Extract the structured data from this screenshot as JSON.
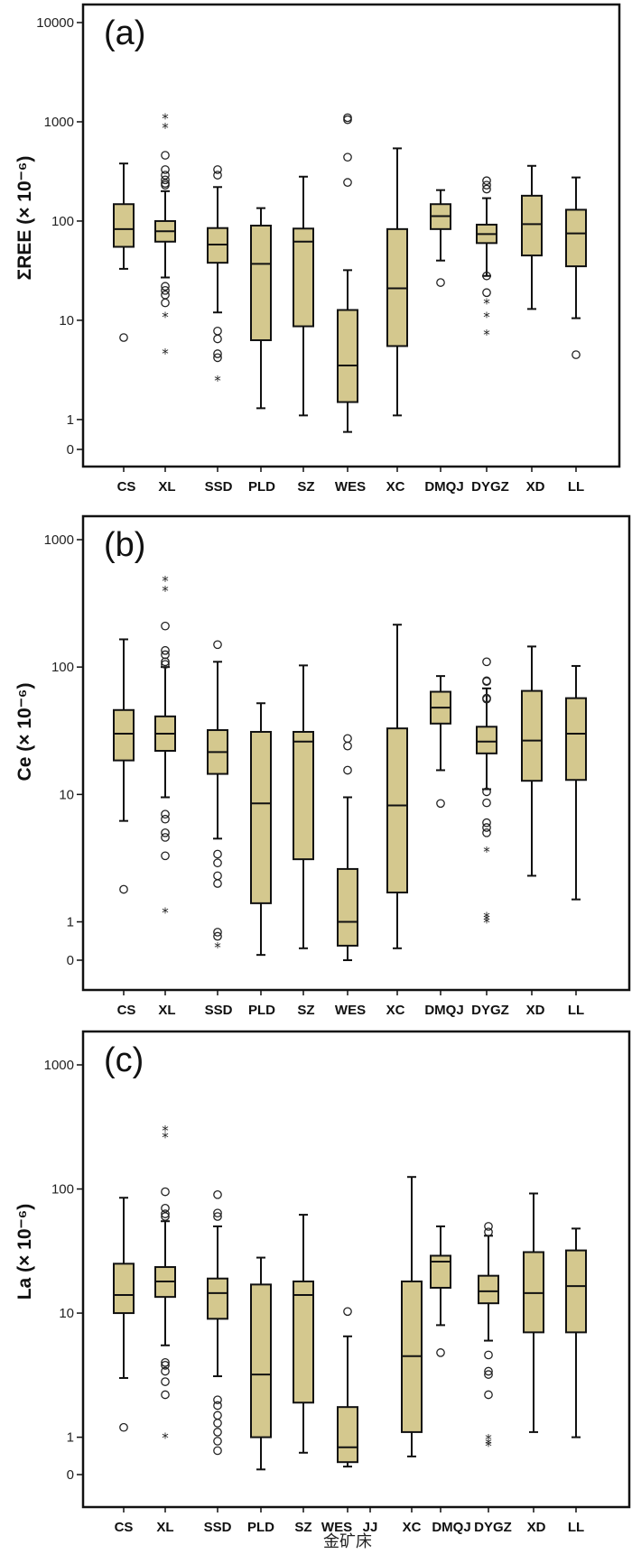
{
  "chart_data": [
    {
      "type": "boxplot",
      "panel_label": "(a)",
      "ylabel": "ΣREE (× 10⁻⁶)",
      "yscale": "log",
      "ylim": [
        0.5,
        10000
      ],
      "yticks": [
        {
          "value": 0.5,
          "label": "0"
        },
        {
          "value": 1,
          "label": "1"
        },
        {
          "value": 10,
          "label": "10"
        },
        {
          "value": 100,
          "label": "100"
        },
        {
          "value": 1000,
          "label": "1000"
        },
        {
          "value": 10000,
          "label": "10000"
        }
      ],
      "categories": [
        "CS",
        "XL",
        "SSD",
        "PLD",
        "SZ",
        "WES",
        "XC",
        "DMQJ",
        "DYGZ",
        "XD",
        "LL"
      ],
      "boxes": [
        {
          "min": 33,
          "q1": 55,
          "median": 83,
          "q3": 148,
          "max": 380,
          "outliers": [
            6.7
          ],
          "extremes": []
        },
        {
          "min": 27,
          "q1": 62,
          "median": 79,
          "q3": 100,
          "max": 200,
          "outliers": [
            460,
            330,
            290,
            260,
            240,
            230,
            22,
            20,
            18,
            15
          ],
          "extremes": [
            1100,
            880,
            11,
            4.7
          ]
        },
        {
          "min": 12,
          "q1": 38,
          "median": 58,
          "q3": 85,
          "max": 220,
          "outliers": [
            330,
            290,
            7.8,
            6.5,
            4.6,
            4.2
          ],
          "extremes": [
            2.5
          ]
        },
        {
          "min": 1.3,
          "q1": 6.3,
          "median": 37,
          "q3": 90,
          "max": 135,
          "outliers": [],
          "extremes": []
        },
        {
          "min": 1.1,
          "q1": 8.7,
          "median": 62,
          "q3": 84,
          "max": 280,
          "outliers": [],
          "extremes": []
        },
        {
          "min": 0.75,
          "q1": 1.5,
          "median": 3.5,
          "q3": 12.7,
          "max": 32,
          "outliers": [
            1100,
            1050,
            440,
            245
          ],
          "extremes": []
        },
        {
          "min": 1.1,
          "q1": 5.5,
          "median": 21,
          "q3": 83,
          "max": 540,
          "outliers": [],
          "extremes": []
        },
        {
          "min": 40,
          "q1": 83,
          "median": 112,
          "q3": 148,
          "max": 205,
          "outliers": [
            24
          ],
          "extremes": []
        },
        {
          "min": 28,
          "q1": 60,
          "median": 74,
          "q3": 92,
          "max": 170,
          "outliers": [
            255,
            230,
            210,
            28,
            19
          ],
          "extremes": [
            15,
            11,
            7.3
          ]
        },
        {
          "min": 13,
          "q1": 45,
          "median": 93,
          "q3": 180,
          "max": 360,
          "outliers": [],
          "extremes": []
        },
        {
          "min": 10.5,
          "q1": 35,
          "median": 75,
          "q3": 130,
          "max": 275,
          "outliers": [
            4.5
          ],
          "extremes": []
        }
      ]
    },
    {
      "type": "boxplot",
      "panel_label": "(b)",
      "ylabel": "Ce (× 10⁻⁶)",
      "yscale": "log",
      "ylim": [
        0.5,
        1000
      ],
      "yticks": [
        {
          "value": 0.5,
          "label": "0"
        },
        {
          "value": 1,
          "label": "1"
        },
        {
          "value": 10,
          "label": "10"
        },
        {
          "value": 100,
          "label": "100"
        },
        {
          "value": 1000,
          "label": "1000"
        }
      ],
      "categories": [
        "CS",
        "XL",
        "SSD",
        "PLD",
        "SZ",
        "WES",
        "XC",
        "DMQJ",
        "DYGZ",
        "XD",
        "LL"
      ],
      "boxes": [
        {
          "min": 6.2,
          "q1": 18.5,
          "median": 30,
          "q3": 46,
          "max": 165,
          "outliers": [
            1.8
          ],
          "extremes": []
        },
        {
          "min": 9.5,
          "q1": 22,
          "median": 30,
          "q3": 41,
          "max": 100,
          "outliers": [
            210,
            135,
            125,
            110,
            105,
            7,
            6.4,
            5,
            4.6,
            3.3
          ],
          "extremes": [
            480,
            400,
            1.2
          ]
        },
        {
          "min": 4.5,
          "q1": 14.5,
          "median": 21.5,
          "q3": 32,
          "max": 110,
          "outliers": [
            150,
            3.4,
            2.9,
            2.3,
            2,
            0.83,
            0.77
          ],
          "extremes": [
            0.64
          ]
        },
        {
          "min": 0.55,
          "q1": 1.4,
          "median": 8.5,
          "q3": 31,
          "max": 52,
          "outliers": [],
          "extremes": []
        },
        {
          "min": 0.62,
          "q1": 3.1,
          "median": 26,
          "q3": 31,
          "max": 103,
          "outliers": [],
          "extremes": []
        },
        {
          "min": 0.5,
          "q1": 0.65,
          "median": 1,
          "q3": 2.6,
          "max": 9.5,
          "outliers": [
            27.5,
            24,
            15.5
          ],
          "extremes": []
        },
        {
          "min": 0.62,
          "q1": 1.7,
          "median": 8.2,
          "q3": 33,
          "max": 215,
          "outliers": [],
          "extremes": []
        },
        {
          "min": 15.5,
          "q1": 36,
          "median": 48,
          "q3": 64,
          "max": 85,
          "outliers": [
            8.5
          ],
          "extremes": []
        },
        {
          "min": 11,
          "q1": 21,
          "median": 26,
          "q3": 34,
          "max": 68,
          "outliers": [
            110,
            78,
            77,
            57,
            56,
            10.5,
            8.6,
            6,
            5.5,
            5
          ],
          "extremes": [
            3.6,
            1.1,
            1.05,
            1
          ]
        },
        {
          "min": 2.3,
          "q1": 12.8,
          "median": 26.5,
          "q3": 65,
          "max": 145,
          "outliers": [],
          "extremes": []
        },
        {
          "min": 1.5,
          "q1": 13,
          "median": 30,
          "q3": 57,
          "max": 102,
          "outliers": [],
          "extremes": []
        }
      ]
    },
    {
      "type": "boxplot",
      "panel_label": "(c)",
      "ylabel": "La (× 10⁻⁶)",
      "xlabel": "金矿床",
      "yscale": "log",
      "ylim": [
        0.5,
        1000
      ],
      "yticks": [
        {
          "value": 0.5,
          "label": "0"
        },
        {
          "value": 1,
          "label": "1"
        },
        {
          "value": 10,
          "label": "10"
        },
        {
          "value": 100,
          "label": "100"
        },
        {
          "value": 1000,
          "label": "1000"
        }
      ],
      "categories": [
        "CS",
        "XL",
        "SSD",
        "PLD",
        "SZ",
        "WES",
        "JJ",
        "XC",
        "DMQJ",
        "DYGZ",
        "XD",
        "LL"
      ],
      "boxes": [
        {
          "min": 3,
          "q1": 10,
          "median": 14,
          "q3": 25,
          "max": 85,
          "outliers": [
            1.2
          ],
          "extremes": []
        },
        {
          "min": 5.5,
          "q1": 13.5,
          "median": 18,
          "q3": 23.5,
          "max": 55,
          "outliers": [
            95,
            70,
            63,
            60,
            4,
            3.8,
            3.4,
            2.8,
            2.2
          ],
          "extremes": [
            300,
            265,
            1
          ]
        },
        {
          "min": 3.1,
          "q1": 9,
          "median": 14.5,
          "q3": 19,
          "max": 50,
          "outliers": [
            90,
            64,
            60,
            2,
            1.8,
            1.5,
            1.3,
            1.1,
            0.93,
            0.78
          ],
          "extremes": []
        },
        {
          "min": 0.55,
          "q1": 1,
          "median": 3.2,
          "q3": 17,
          "max": 28,
          "outliers": [],
          "extremes": []
        },
        {
          "min": 0.75,
          "q1": 1.9,
          "median": 14,
          "q3": 18,
          "max": 62,
          "outliers": [],
          "extremes": []
        },
        {
          "min": 0.58,
          "q1": 0.63,
          "median": 0.83,
          "q3": 1.75,
          "max": 6.5,
          "outliers": [
            10.3
          ],
          "extremes": []
        },
        {
          "min": null,
          "q1": null,
          "median": null,
          "q3": null,
          "max": null,
          "outliers": [],
          "extremes": []
        },
        {
          "min": 0.7,
          "q1": 1.1,
          "median": 4.5,
          "q3": 18,
          "max": 125,
          "outliers": [],
          "extremes": []
        },
        {
          "min": 8,
          "q1": 16,
          "median": 26,
          "q3": 29,
          "max": 50,
          "outliers": [
            4.8
          ],
          "extremes": []
        },
        {
          "min": 6,
          "q1": 12,
          "median": 15,
          "q3": 20,
          "max": 42,
          "outliers": [
            50,
            45,
            4.6,
            3.4,
            3.2,
            2.2
          ],
          "extremes": [
            0.98,
            0.9,
            0.86
          ]
        },
        {
          "min": 1.1,
          "q1": 7,
          "median": 14.5,
          "q3": 31,
          "max": 92,
          "outliers": [],
          "extremes": []
        },
        {
          "min": 1,
          "q1": 7,
          "median": 16.5,
          "q3": 32,
          "max": 48,
          "outliers": [],
          "extremes": []
        }
      ]
    }
  ]
}
